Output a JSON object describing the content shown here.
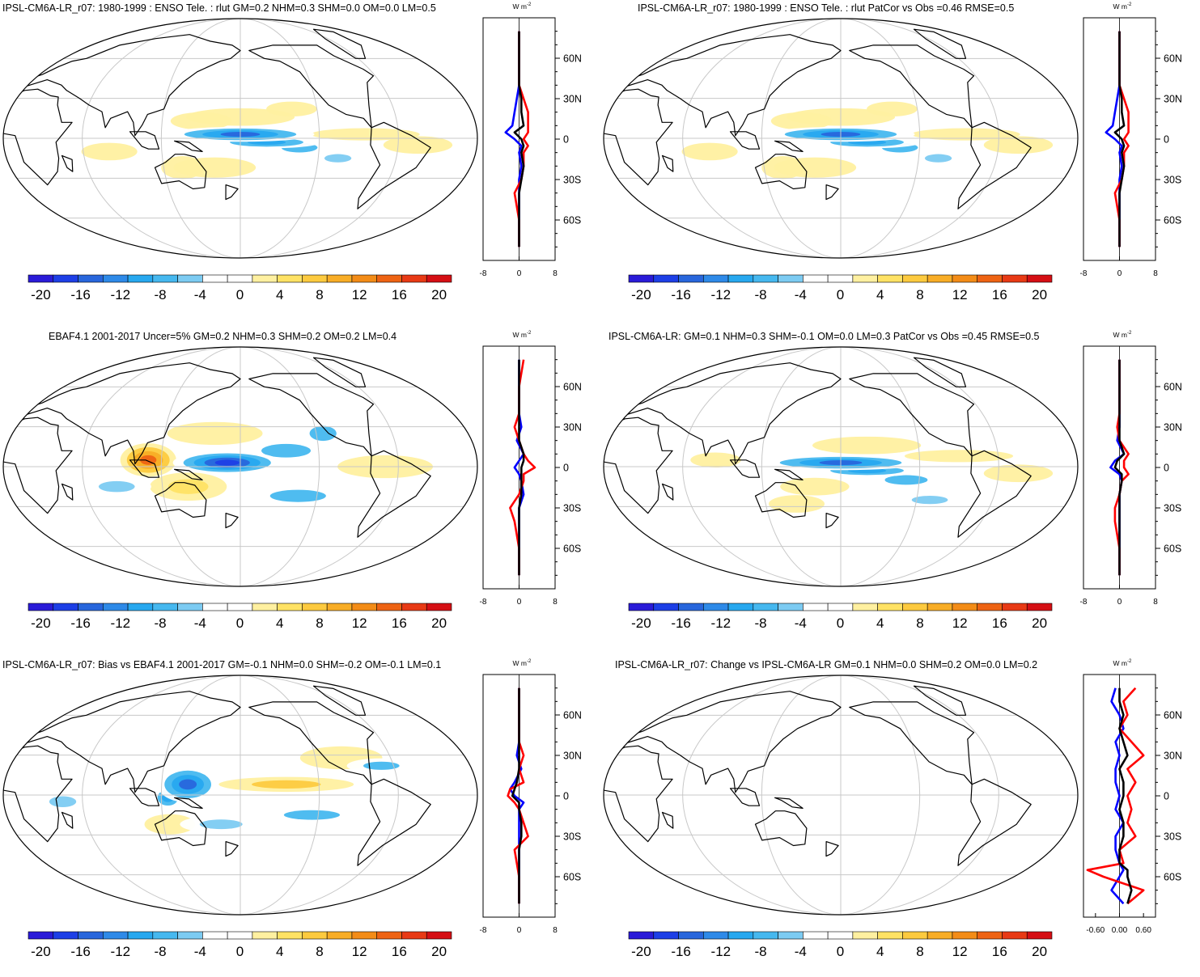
{
  "units_label": "W m",
  "units_exponent": "-2",
  "colorbar": {
    "colors": [
      "#2a1bd8",
      "#1d3fe6",
      "#2866dc",
      "#2e8ae8",
      "#27a8ef",
      "#46b8ef",
      "#7ccbf2",
      "#ffffff",
      "#ffffff",
      "#fff0a0",
      "#ffe264",
      "#fdca3f",
      "#f8ad26",
      "#f38c17",
      "#ee6313",
      "#e83a15",
      "#d50f14"
    ],
    "tick_labels": [
      "-20",
      "-16",
      "-12",
      "-8",
      "-4",
      "0",
      "4",
      "8",
      "12",
      "16",
      "20"
    ]
  },
  "lat_labels": [
    "60N",
    "30N",
    "0",
    "30S",
    "60S"
  ],
  "chart_data": [
    {
      "type": "heatmap",
      "title": "IPSL-CM6A-LR_r07: 1980-1999 : ENSO Tele. : rlut GM=0.2 NHM=0.3 SHM=0.0 OM=0.0 LM=0.5",
      "zonal_profile": {
        "xlim": [
          -8,
          8
        ],
        "xticks": [
          "-8",
          "0",
          "8"
        ],
        "lat": [
          80,
          60,
          40,
          30,
          20,
          10,
          5,
          0,
          -5,
          -10,
          -20,
          -30,
          -40,
          -60,
          -80
        ],
        "series": [
          {
            "color": "#0000ff",
            "values": [
              0,
              0,
              0,
              -0.5,
              -1,
              -1.5,
              -3,
              -1,
              0.5,
              0,
              0.5,
              0,
              0,
              0,
              0
            ]
          },
          {
            "color": "#ff0000",
            "values": [
              0,
              0,
              0,
              1,
              2,
              2,
              2,
              1,
              2,
              1,
              1,
              0.5,
              -1,
              0,
              0
            ]
          },
          {
            "color": "#000000",
            "values": [
              0,
              0,
              0,
              0.5,
              0.5,
              1,
              -1,
              0.5,
              1,
              0.5,
              1,
              0.5,
              0,
              0,
              0
            ]
          }
        ]
      }
    },
    {
      "type": "heatmap",
      "title": "IPSL-CM6A-LR_r07: 1980-1999 : ENSO Tele. : rlut PatCor vs Obs =0.46 RMSE=0.5",
      "zonal_profile": {
        "xlim": [
          -8,
          8
        ],
        "xticks": [
          "-8",
          "0",
          "8"
        ],
        "lat": [
          80,
          60,
          40,
          30,
          20,
          10,
          5,
          0,
          -5,
          -10,
          -20,
          -30,
          -40,
          -60,
          -80
        ],
        "series": [
          {
            "color": "#0000ff",
            "values": [
              0,
              0,
              0,
              -0.5,
              -1,
              -1.5,
              -3,
              -1,
              0.5,
              0,
              0.5,
              0,
              0,
              0,
              0
            ]
          },
          {
            "color": "#ff0000",
            "values": [
              0,
              0,
              0,
              1,
              2,
              2,
              2,
              1,
              2,
              1,
              1,
              0.5,
              -1,
              0,
              0
            ]
          },
          {
            "color": "#000000",
            "values": [
              0,
              0,
              0,
              0.5,
              0.5,
              1,
              -1,
              0.5,
              1,
              0.5,
              1,
              0.5,
              0,
              0,
              0
            ]
          }
        ]
      }
    },
    {
      "type": "heatmap",
      "title": "EBAF4.1 2001-2017 Uncer=5% GM=0.2 NHM=0.3 SHM=0.2 OM=0.2 LM=0.4",
      "zonal_profile": {
        "xlim": [
          -8,
          8
        ],
        "xticks": [
          "-8",
          "0",
          "8"
        ],
        "lat": [
          80,
          60,
          40,
          30,
          20,
          10,
          5,
          0,
          -5,
          -10,
          -20,
          -30,
          -40,
          -60,
          -80
        ],
        "series": [
          {
            "color": "#0000ff",
            "values": [
              0,
              0,
              0,
              0.5,
              -0.5,
              1,
              0,
              -1,
              0,
              0.5,
              1,
              0,
              0,
              0,
              0
            ]
          },
          {
            "color": "#ff0000",
            "values": [
              1,
              0,
              0,
              -1,
              0,
              1,
              2,
              3.5,
              1,
              1,
              0,
              -2,
              -1,
              0,
              0
            ]
          },
          {
            "color": "#000000",
            "values": [
              0,
              0,
              0,
              0,
              0,
              1,
              1,
              0.5,
              0.5,
              0.5,
              0.5,
              0,
              0,
              0,
              0
            ]
          }
        ]
      }
    },
    {
      "type": "heatmap",
      "title": "IPSL-CM6A-LR: GM=0.1 NHM=0.3 SHM=-0.1 OM=0.0 LM=0.3 PatCor vs Obs =0.45 RMSE=0.5",
      "zonal_profile": {
        "xlim": [
          -8,
          8
        ],
        "xticks": [
          "-8",
          "0",
          "8"
        ],
        "lat": [
          80,
          60,
          40,
          30,
          20,
          10,
          5,
          0,
          -5,
          -10,
          -20,
          -30,
          -40,
          -60,
          -80
        ],
        "series": [
          {
            "color": "#0000ff",
            "values": [
              0,
              0,
              0,
              0,
              -0.5,
              1,
              -1,
              -2,
              0,
              0.5,
              0,
              0,
              0,
              0,
              0
            ]
          },
          {
            "color": "#ff0000",
            "values": [
              0,
              0,
              0,
              -0.5,
              0,
              2,
              1,
              1,
              2,
              0.5,
              0,
              -1,
              -1,
              0,
              0
            ]
          },
          {
            "color": "#000000",
            "values": [
              0,
              0,
              0,
              0,
              0,
              1,
              -0.5,
              -1,
              0.5,
              0.5,
              0,
              0,
              0,
              0,
              0
            ]
          }
        ]
      }
    },
    {
      "type": "heatmap",
      "title": "IPSL-CM6A-LR_r07: Bias vs EBAF4.1 2001-2017 GM=-0.1 NHM=0.0 SHM=-0.2 OM=-0.1 LM=0.1",
      "zonal_profile": {
        "xlim": [
          -8,
          8
        ],
        "xticks": [
          "-8",
          "0",
          "8"
        ],
        "lat": [
          80,
          60,
          40,
          30,
          20,
          10,
          5,
          0,
          -5,
          -10,
          -20,
          -30,
          -40,
          -60,
          -80
        ],
        "series": [
          {
            "color": "#0000ff",
            "values": [
              0,
              0,
              0,
              -0.5,
              0.5,
              -1,
              -2,
              -1,
              1,
              0,
              0,
              0,
              0,
              0,
              0
            ]
          },
          {
            "color": "#ff0000",
            "values": [
              0,
              0,
              0,
              1,
              0,
              1,
              -2,
              -2.5,
              -1,
              0,
              1,
              2,
              -1,
              0,
              0
            ]
          },
          {
            "color": "#000000",
            "values": [
              0,
              0,
              0,
              0,
              0,
              -0.5,
              -1,
              -1.5,
              0,
              0,
              0.5,
              0.5,
              0,
              0,
              0
            ]
          }
        ]
      }
    },
    {
      "type": "heatmap",
      "title": "IPSL-CM6A-LR_r07: Change vs IPSL-CM6A-LR GM=0.1 NHM=0.0 SHM=0.2 OM=0.0 LM=0.2",
      "zonal_profile": {
        "xlim": [
          -0.9,
          0.9
        ],
        "xticks": [
          "-0.60",
          "0.00",
          "0.60"
        ],
        "lat": [
          80,
          70,
          60,
          50,
          40,
          30,
          20,
          10,
          0,
          -10,
          -20,
          -30,
          -40,
          -50,
          -55,
          -60,
          -70,
          -80
        ],
        "series": [
          {
            "color": "#0000ff",
            "values": [
              -0.1,
              -0.2,
              0,
              0.1,
              -0.1,
              0,
              -0.1,
              -0.1,
              0,
              -0.1,
              0.1,
              -0.1,
              -0.1,
              0,
              0.1,
              0,
              -0.2,
              0.1
            ]
          },
          {
            "color": "#ff0000",
            "values": [
              0.4,
              0.1,
              0.2,
              0,
              0.3,
              0.6,
              0.2,
              0.4,
              0.2,
              0.3,
              0.2,
              0.4,
              0,
              0.1,
              -0.8,
              -0.4,
              0.6,
              0.2
            ]
          },
          {
            "color": "#000000",
            "values": [
              0,
              0,
              0.1,
              0,
              0.1,
              0.2,
              0,
              0.1,
              0.1,
              0,
              0.1,
              0.1,
              0,
              0,
              0.2,
              0.2,
              0.3,
              0.2
            ]
          }
        ]
      }
    }
  ]
}
